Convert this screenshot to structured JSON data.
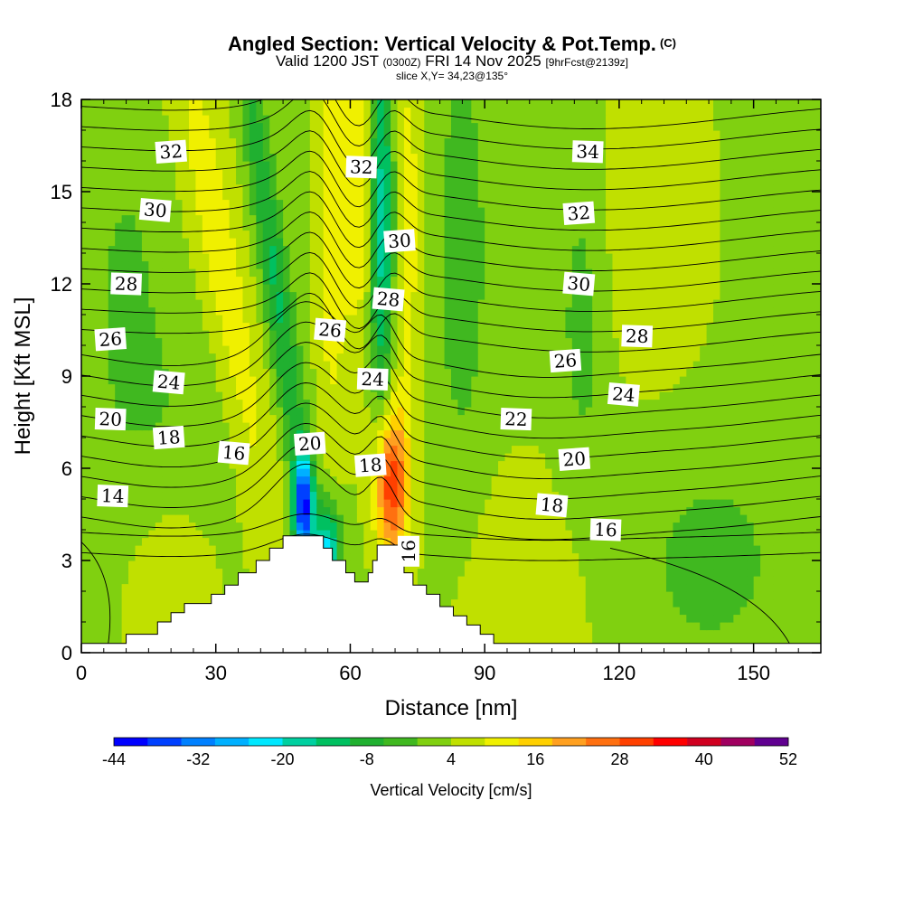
{
  "title": {
    "main": "Angled Section: Vertical Velocity & Pot.Temp.",
    "main_suffix": "(C)",
    "valid_prefix": "Valid 1200 JST",
    "valid_z": "(0300Z)",
    "valid_date": "FRI 14 Nov 2025",
    "valid_fcst": "[9hrFcst@2139z]",
    "slice": "slice X,Y= 34,23@135°"
  },
  "chart_data": {
    "type": "heatmap",
    "xlabel": "Distance [nm]",
    "ylabel": "Height [Kft MSL]",
    "xlim": [
      0,
      165
    ],
    "ylim": [
      0,
      18
    ],
    "x_ticks": [
      0,
      30,
      60,
      90,
      120,
      150
    ],
    "y_ticks": [
      0,
      3,
      6,
      9,
      12,
      15,
      18
    ],
    "colorbar": {
      "label": "Vertical Velocity [cm/s]",
      "tick_labels": [
        -44,
        -32,
        -20,
        -8,
        4,
        16,
        28,
        40,
        52
      ],
      "min": -44,
      "max": 52,
      "colors": [
        "#0000ff",
        "#0040ff",
        "#0080ff",
        "#00b0ff",
        "#00e8ff",
        "#00d0a0",
        "#00c060",
        "#20b030",
        "#40b820",
        "#80d010",
        "#c0e000",
        "#f0f000",
        "#ffd000",
        "#ffa020",
        "#ff7010",
        "#ff4000",
        "#ff0000",
        "#d00020",
        "#a00060",
        "#600090"
      ]
    },
    "terrain_kft": [
      [
        0,
        0.3
      ],
      [
        10,
        0.6
      ],
      [
        17,
        1.0
      ],
      [
        20,
        1.3
      ],
      [
        23,
        1.6
      ],
      [
        29,
        1.9
      ],
      [
        32,
        2.2
      ],
      [
        35,
        2.6
      ],
      [
        39,
        3.0
      ],
      [
        42,
        3.4
      ],
      [
        45,
        3.8
      ],
      [
        51,
        3.8
      ],
      [
        54,
        3.4
      ],
      [
        56,
        3.0
      ],
      [
        59,
        2.6
      ],
      [
        61,
        2.3
      ],
      [
        64,
        2.6
      ],
      [
        65,
        3.0
      ],
      [
        66,
        3.5
      ],
      [
        70,
        3.5
      ],
      [
        71,
        3.1
      ],
      [
        72,
        2.6
      ],
      [
        74,
        2.2
      ],
      [
        77,
        1.9
      ],
      [
        80,
        1.5
      ],
      [
        83,
        1.2
      ],
      [
        86,
        0.9
      ],
      [
        89,
        0.6
      ],
      [
        92,
        0.3
      ],
      [
        165,
        0.3
      ]
    ],
    "theta_contour_labels": [
      {
        "text": "32",
        "x": 20,
        "y": 16.3
      },
      {
        "text": "30",
        "x": 16.5,
        "y": 14.4
      },
      {
        "text": "28",
        "x": 10,
        "y": 12.0
      },
      {
        "text": "26",
        "x": 6.5,
        "y": 10.2
      },
      {
        "text": "24",
        "x": 19.5,
        "y": 8.8
      },
      {
        "text": "20",
        "x": 6.5,
        "y": 7.6
      },
      {
        "text": "18",
        "x": 19.5,
        "y": 7.0
      },
      {
        "text": "16",
        "x": 34,
        "y": 6.5
      },
      {
        "text": "14",
        "x": 7,
        "y": 5.1
      },
      {
        "text": "20",
        "x": 51,
        "y": 6.8
      },
      {
        "text": "26",
        "x": 55.5,
        "y": 10.5
      },
      {
        "text": "24",
        "x": 65,
        "y": 8.9
      },
      {
        "text": "18",
        "x": 64.5,
        "y": 6.1
      },
      {
        "text": "16",
        "x": 73,
        "y": 3.3
      },
      {
        "text": "32",
        "x": 62.5,
        "y": 15.8
      },
      {
        "text": "30",
        "x": 71,
        "y": 13.4
      },
      {
        "text": "28",
        "x": 68.5,
        "y": 11.5
      },
      {
        "text": "34",
        "x": 113,
        "y": 16.3
      },
      {
        "text": "32",
        "x": 111,
        "y": 14.3
      },
      {
        "text": "30",
        "x": 111,
        "y": 12.0
      },
      {
        "text": "28",
        "x": 124,
        "y": 10.3
      },
      {
        "text": "26",
        "x": 108,
        "y": 9.5
      },
      {
        "text": "24",
        "x": 121,
        "y": 8.4
      },
      {
        "text": "22",
        "x": 97,
        "y": 7.6
      },
      {
        "text": "20",
        "x": 110,
        "y": 6.3
      },
      {
        "text": "18",
        "x": 105,
        "y": 4.8
      },
      {
        "text": "16",
        "x": 117,
        "y": 4.0
      }
    ],
    "theta_contour_values": [
      13,
      14,
      15,
      16,
      17,
      18,
      19,
      20,
      21,
      22,
      23,
      24,
      25,
      26,
      27,
      28,
      29,
      30,
      31,
      32,
      33,
      34,
      35
    ]
  }
}
